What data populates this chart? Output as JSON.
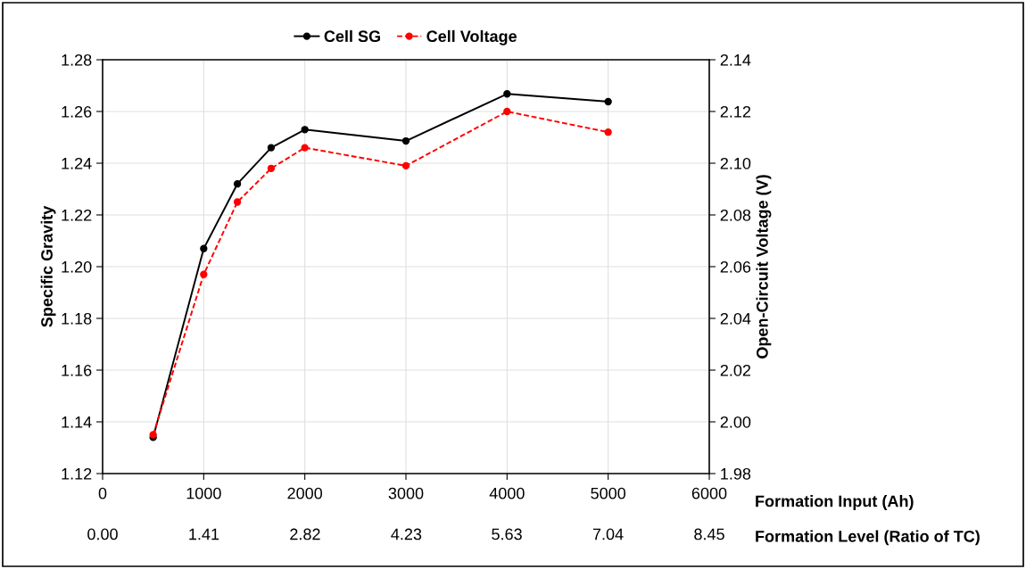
{
  "chart_data": {
    "type": "line",
    "xlabel": "Formation Input (Ah)",
    "x2label": "Formation Level (Ratio of TC)",
    "ylabel": "Specific Gravity",
    "y2label": "Open-Circuit Voltage (V)",
    "x": [
      500,
      1000,
      1333,
      1667,
      2000,
      3000,
      4000,
      5000
    ],
    "series": [
      {
        "name": "Cell SG",
        "color": "#000000",
        "line_style": "solid",
        "values": [
          1.134,
          1.207,
          1.232,
          1.246,
          1.253,
          1.2486,
          1.2668,
          1.2638
        ]
      },
      {
        "name": "Cell Voltage",
        "color": "#ff0000",
        "line_style": "dashed",
        "axis": "y2",
        "values": [
          1.995,
          2.057,
          2.085,
          2.098,
          2.106,
          2.099,
          2.12,
          2.112
        ]
      }
    ],
    "xlim": [
      0,
      6000
    ],
    "xticks": [
      0,
      1000,
      2000,
      3000,
      4000,
      5000,
      6000
    ],
    "x2lim": [
      0,
      8.45
    ],
    "x2ticks": [
      {
        "value": 0,
        "label": "0.00"
      },
      1.41,
      2.82,
      4.23,
      5.63,
      7.04,
      8.45
    ],
    "ylim": [
      1.12,
      1.28
    ],
    "yticks": [
      {
        "value": 1.12,
        "label": "1.12"
      },
      {
        "value": 1.14,
        "label": "1.14"
      },
      {
        "value": 1.16,
        "label": "1.16"
      },
      {
        "value": 1.18,
        "label": "1.18"
      },
      {
        "value": 1.2,
        "label": "1.20"
      },
      {
        "value": 1.22,
        "label": "1.22"
      },
      {
        "value": 1.24,
        "label": "1.24"
      },
      {
        "value": 1.26,
        "label": "1.26"
      },
      {
        "value": 1.28,
        "label": "1.28"
      }
    ],
    "y2lim": [
      1.98,
      2.14
    ],
    "y2ticks": [
      {
        "value": 1.98,
        "label": "1.98"
      },
      {
        "value": 2.0,
        "label": "2.00"
      },
      {
        "value": 2.02,
        "label": "2.02"
      },
      {
        "value": 2.04,
        "label": "2.04"
      },
      {
        "value": 2.06,
        "label": "2.06"
      },
      {
        "value": 2.08,
        "label": "2.08"
      },
      {
        "value": 2.1,
        "label": "2.10"
      },
      {
        "value": 2.12,
        "label": "2.12"
      },
      {
        "value": 2.14,
        "label": "2.14"
      }
    ],
    "grid": true,
    "legend": "top",
    "marker": "circle"
  }
}
